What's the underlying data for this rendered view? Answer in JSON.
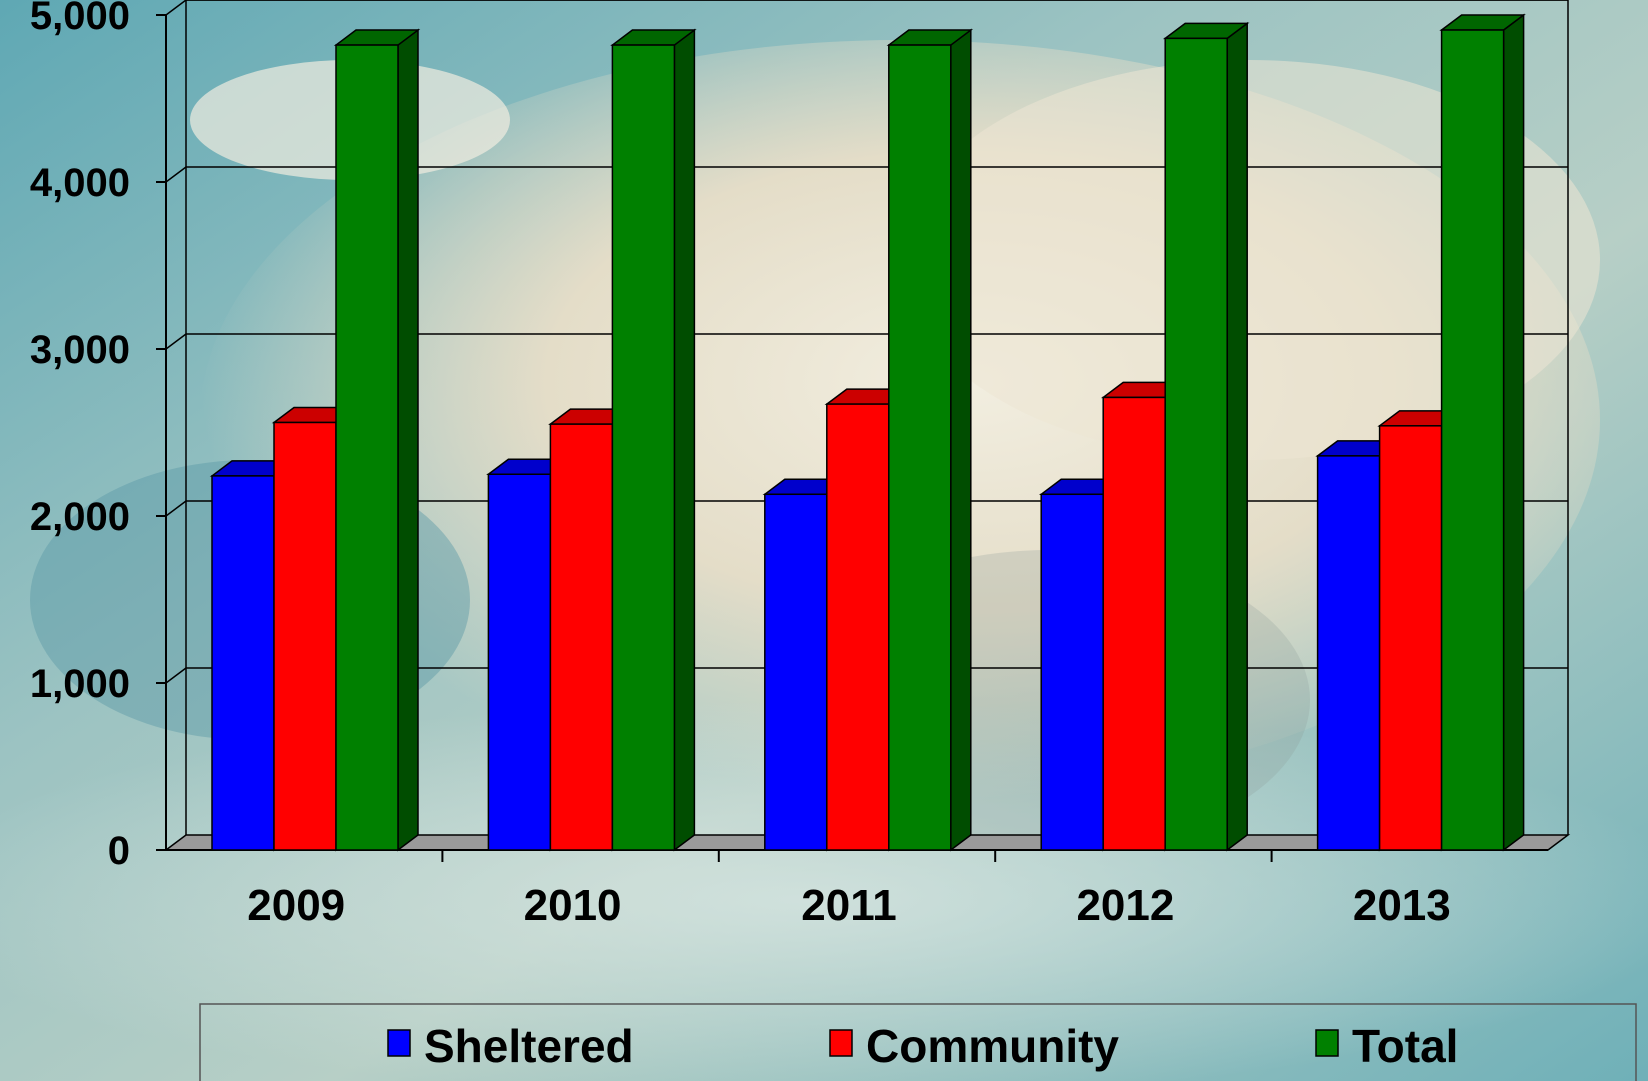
{
  "chart_data": {
    "type": "bar",
    "categories": [
      "2009",
      "2010",
      "2011",
      "2012",
      "2013"
    ],
    "series": [
      {
        "name": "Sheltered",
        "color": "#0000ff",
        "values": [
          2240,
          2250,
          2130,
          2130,
          2360
        ]
      },
      {
        "name": "Community",
        "color": "#ff0000",
        "values": [
          2560,
          2550,
          2670,
          2710,
          2540
        ]
      },
      {
        "name": "Total",
        "color": "#008000",
        "values": [
          4820,
          4820,
          4820,
          4860,
          4910
        ]
      }
    ],
    "y_ticks": [
      "0",
      "1,000",
      "2,000",
      "3,000",
      "4,000",
      "5,000"
    ],
    "ylim": [
      0,
      5000
    ],
    "grid": true,
    "legend_position": "bottom",
    "style": "3d-clustered-bar",
    "background": "photo of a manatee underwater"
  }
}
